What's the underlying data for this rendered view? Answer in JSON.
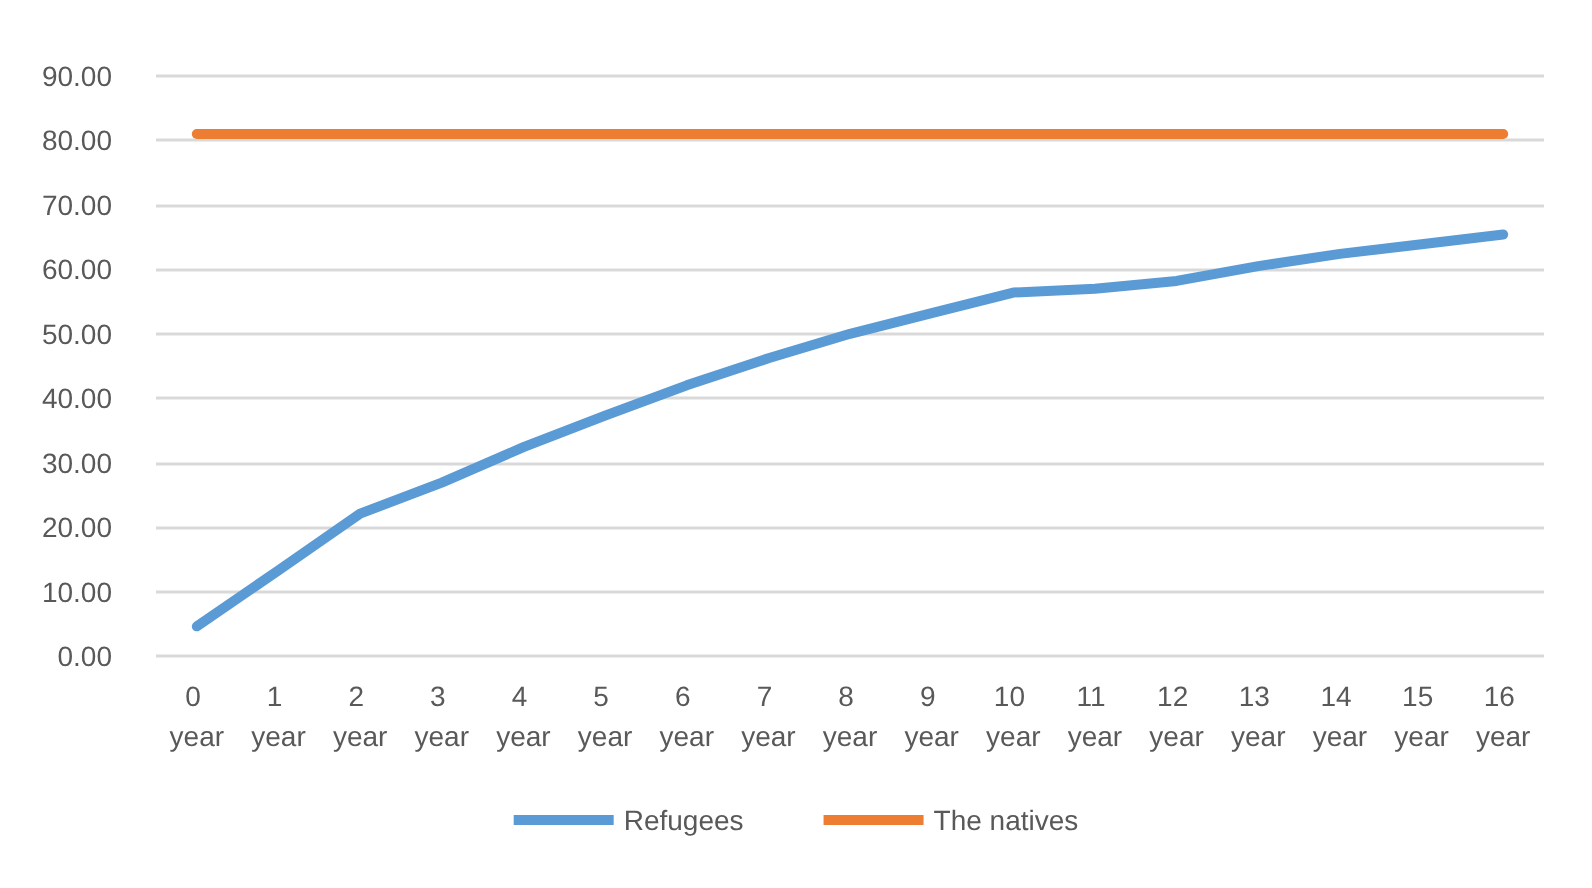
{
  "chart_data": {
    "type": "line",
    "categories": [
      "0 year",
      "1 year",
      "2 year",
      "3 year",
      "4 year",
      "5 year",
      "6 year",
      "7 year",
      "8 year",
      "9 year",
      "10 year",
      "11 year",
      "12 year",
      "13 year",
      "14 year",
      "15 year",
      "16 year"
    ],
    "series": [
      {
        "name": "Refugees",
        "color": "#5b9bd5",
        "values": [
          4.6,
          13.3,
          22.1,
          26.9,
          32.4,
          37.3,
          42.0,
          46.2,
          50.0,
          53.2,
          56.4,
          57.0,
          58.2,
          60.5,
          62.4,
          63.9,
          65.4
        ]
      },
      {
        "name": "The natives",
        "color": "#ed7d31",
        "values": [
          81,
          81,
          81,
          81,
          81,
          81,
          81,
          81,
          81,
          81,
          81,
          81,
          81,
          81,
          81,
          81,
          81
        ]
      }
    ],
    "ylim": [
      0,
      90
    ],
    "yticks": [
      {
        "value": 0,
        "label": "0.00"
      },
      {
        "value": 10,
        "label": "10.00"
      },
      {
        "value": 20,
        "label": "20.00"
      },
      {
        "value": 30,
        "label": "30.00"
      },
      {
        "value": 40,
        "label": "40.00"
      },
      {
        "value": 50,
        "label": "50.00"
      },
      {
        "value": 60,
        "label": "60.00"
      },
      {
        "value": 70,
        "label": "70.00"
      },
      {
        "value": 80,
        "label": "80.00"
      },
      {
        "value": 90,
        "label": "90.00"
      }
    ],
    "grid": "y",
    "legend": "bottom",
    "marker": "none",
    "line_style": "solid"
  }
}
